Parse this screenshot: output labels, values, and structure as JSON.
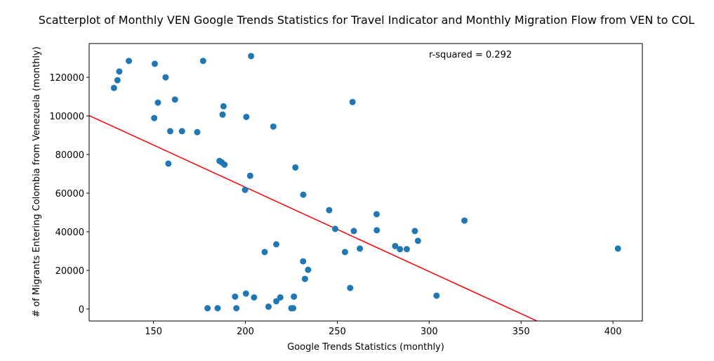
{
  "chart_data": {
    "type": "scatter",
    "title": "Scatterplot of Monthly VEN Google Trends Statistics for Travel Indicator and Monthly Migration Flow from VEN to COL",
    "xlabel": "Google Trends Statistics (monthly)",
    "ylabel": "# of Migrants Entering Colombia from Venezuela (monthly)",
    "xlim": [
      115,
      416
    ],
    "ylim": [
      -6200,
      137500
    ],
    "xticks": [
      150,
      200,
      250,
      300,
      350,
      400
    ],
    "yticks": [
      0,
      20000,
      40000,
      60000,
      80000,
      100000,
      120000
    ],
    "grid": false,
    "point_color": "#1f77b4",
    "line_color": "#ff0000",
    "annotation": "r-squared = 0.292",
    "regression_line": {
      "x": [
        115,
        358.6
      ],
      "y": [
        100200,
        -6200
      ]
    },
    "points": [
      {
        "x": 128.5,
        "y": 114500
      },
      {
        "x": 130.4,
        "y": 118500
      },
      {
        "x": 131.4,
        "y": 123000
      },
      {
        "x": 136.6,
        "y": 128500
      },
      {
        "x": 150.7,
        "y": 127000
      },
      {
        "x": 150.4,
        "y": 98900
      },
      {
        "x": 152.4,
        "y": 106900
      },
      {
        "x": 156.6,
        "y": 120000
      },
      {
        "x": 158.1,
        "y": 75300
      },
      {
        "x": 159.1,
        "y": 92100
      },
      {
        "x": 161.7,
        "y": 108500
      },
      {
        "x": 165.5,
        "y": 92100
      },
      {
        "x": 173.8,
        "y": 91600
      },
      {
        "x": 177.0,
        "y": 128500
      },
      {
        "x": 179.4,
        "y": 400
      },
      {
        "x": 184.9,
        "y": 400
      },
      {
        "x": 185.9,
        "y": 76700
      },
      {
        "x": 187.1,
        "y": 76000
      },
      {
        "x": 187.6,
        "y": 100700
      },
      {
        "x": 188.1,
        "y": 105000
      },
      {
        "x": 188.6,
        "y": 74800
      },
      {
        "x": 194.4,
        "y": 6400
      },
      {
        "x": 195.1,
        "y": 400
      },
      {
        "x": 199.8,
        "y": 61700
      },
      {
        "x": 200.5,
        "y": 99500
      },
      {
        "x": 200.3,
        "y": 8000
      },
      {
        "x": 202.6,
        "y": 69000
      },
      {
        "x": 203.1,
        "y": 131000
      },
      {
        "x": 204.7,
        "y": 6000
      },
      {
        "x": 210.5,
        "y": 29500
      },
      {
        "x": 212.6,
        "y": 1200
      },
      {
        "x": 215.2,
        "y": 94500
      },
      {
        "x": 216.8,
        "y": 33500
      },
      {
        "x": 216.8,
        "y": 4000
      },
      {
        "x": 219.0,
        "y": 6000
      },
      {
        "x": 225.0,
        "y": 400
      },
      {
        "x": 226.0,
        "y": 400
      },
      {
        "x": 226.4,
        "y": 6400
      },
      {
        "x": 227.2,
        "y": 73300
      },
      {
        "x": 231.5,
        "y": 59200
      },
      {
        "x": 231.4,
        "y": 24700
      },
      {
        "x": 232.4,
        "y": 15600
      },
      {
        "x": 234.1,
        "y": 20300
      },
      {
        "x": 245.6,
        "y": 51200
      },
      {
        "x": 248.9,
        "y": 41500
      },
      {
        "x": 254.2,
        "y": 29500
      },
      {
        "x": 257.0,
        "y": 10900
      },
      {
        "x": 258.3,
        "y": 107200
      },
      {
        "x": 259.0,
        "y": 40400
      },
      {
        "x": 262.3,
        "y": 31300
      },
      {
        "x": 271.4,
        "y": 49100
      },
      {
        "x": 271.5,
        "y": 40800
      },
      {
        "x": 281.5,
        "y": 32600
      },
      {
        "x": 284.1,
        "y": 31000
      },
      {
        "x": 287.8,
        "y": 31000
      },
      {
        "x": 292.2,
        "y": 40400
      },
      {
        "x": 293.9,
        "y": 35300
      },
      {
        "x": 304.0,
        "y": 6900
      },
      {
        "x": 319.2,
        "y": 45800
      },
      {
        "x": 402.7,
        "y": 31300
      }
    ]
  }
}
